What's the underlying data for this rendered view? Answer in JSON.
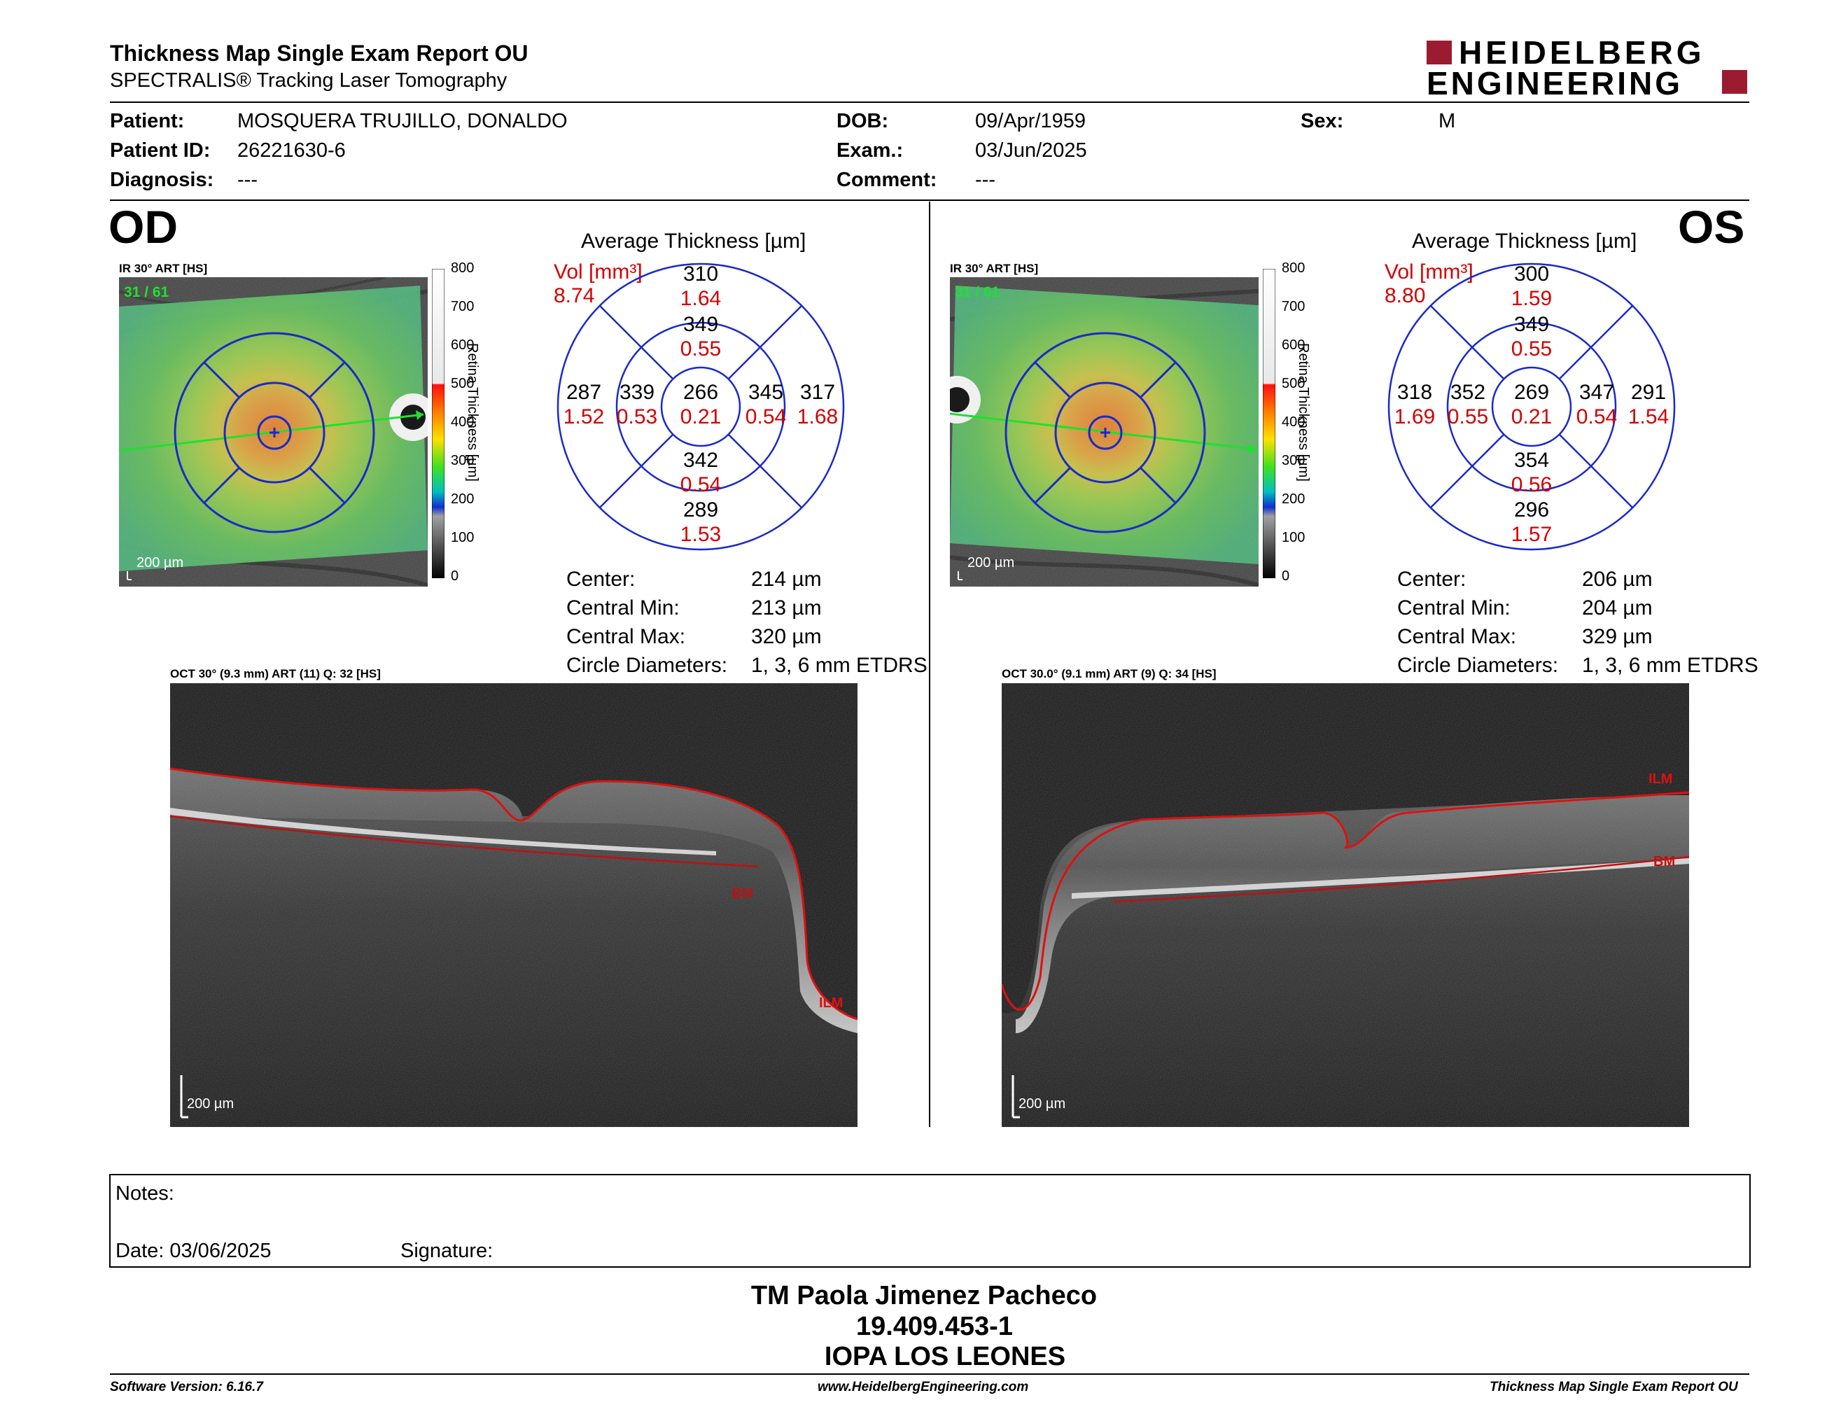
{
  "header": {
    "title": "Thickness Map Single Exam Report OU",
    "subtitle": "SPECTRALIS® Tracking Laser Tomography",
    "logo_line1": "HEIDELBERG",
    "logo_line2": "ENGINEERING",
    "brand_color": "#9b1b30"
  },
  "patient": {
    "patient_label": "Patient:",
    "patient_value": "MOSQUERA TRUJILLO, DONALDO",
    "id_label": "Patient ID:",
    "id_value": "26221630-6",
    "diagnosis_label": "Diagnosis:",
    "diagnosis_value": "---",
    "dob_label": "DOB:",
    "dob_value": "09/Apr/1959",
    "exam_label": "Exam.:",
    "exam_value": "03/Jun/2025",
    "comment_label": "Comment:",
    "comment_value": "---",
    "sex_label": "Sex:",
    "sex_value": "M"
  },
  "colorbar": {
    "ticks": [
      "800",
      "700",
      "600",
      "500",
      "400",
      "300",
      "200",
      "100",
      "0"
    ],
    "axis_label": "Retina Thickness [µm]"
  },
  "od": {
    "eye": "OD",
    "ir_label": "IR 30° ART [HS]",
    "frame_label": "31 / 61",
    "scale": "200 µm",
    "avg_title": "Average Thickness [µm]",
    "vol_label": "Vol [mm³]",
    "vol_total": "8.74",
    "etdrs": {
      "center_t": "266",
      "center_v": "0.21",
      "inner_sup_t": "349",
      "inner_sup_v": "0.55",
      "inner_inf_t": "342",
      "inner_inf_v": "0.54",
      "inner_left_t": "339",
      "inner_left_v": "0.53",
      "inner_right_t": "345",
      "inner_right_v": "0.54",
      "outer_sup_t": "310",
      "outer_sup_v": "1.64",
      "outer_inf_t": "289",
      "outer_inf_v": "1.53",
      "outer_left_t": "287",
      "outer_left_v": "1.52",
      "outer_right_t": "317",
      "outer_right_v": "1.68"
    },
    "stats": {
      "center_label": "Center:",
      "center_value": "214 µm",
      "min_label": "Central Min:",
      "min_value": "213 µm",
      "max_label": "Central Max:",
      "max_value": "320 µm",
      "diam_label": "Circle Diameters:",
      "diam_value": "1, 3, 6 mm ETDRS"
    },
    "oct_label": "OCT 30° (9.3 mm) ART (11) Q: 32 [HS]",
    "ilm": "ILM",
    "bm": "BM",
    "oct_scale": "200 µm"
  },
  "os": {
    "eye": "OS",
    "ir_label": "IR 30° ART [HS]",
    "frame_label": "31 / 61",
    "scale": "200 µm",
    "avg_title": "Average Thickness [µm]",
    "vol_label": "Vol [mm³]",
    "vol_total": "8.80",
    "etdrs": {
      "center_t": "269",
      "center_v": "0.21",
      "inner_sup_t": "349",
      "inner_sup_v": "0.55",
      "inner_inf_t": "354",
      "inner_inf_v": "0.56",
      "inner_left_t": "352",
      "inner_left_v": "0.55",
      "inner_right_t": "347",
      "inner_right_v": "0.54",
      "outer_sup_t": "300",
      "outer_sup_v": "1.59",
      "outer_inf_t": "296",
      "outer_inf_v": "1.57",
      "outer_left_t": "318",
      "outer_left_v": "1.69",
      "outer_right_t": "291",
      "outer_right_v": "1.54"
    },
    "stats": {
      "center_label": "Center:",
      "center_value": "206 µm",
      "min_label": "Central Min:",
      "min_value": "204 µm",
      "max_label": "Central Max:",
      "max_value": "329 µm",
      "diam_label": "Circle Diameters:",
      "diam_value": "1, 3, 6 mm ETDRS"
    },
    "oct_label": "OCT 30.0° (9.1 mm) ART (9) Q: 34 [HS]",
    "ilm": "ILM",
    "bm": "BM",
    "oct_scale": "200 µm"
  },
  "notes": {
    "notes_label": "Notes:",
    "date_label": "Date: 03/06/2025",
    "signature_label": "Signature:"
  },
  "signer": {
    "name": "TM Paola Jimenez Pacheco",
    "id": "19.409.453-1",
    "org": "IOPA LOS LEONES"
  },
  "footer": {
    "software": "Software Version: 6.16.7",
    "website": "www.HeidelbergEngineering.com",
    "report": "Thickness Map Single Exam Report OU"
  }
}
